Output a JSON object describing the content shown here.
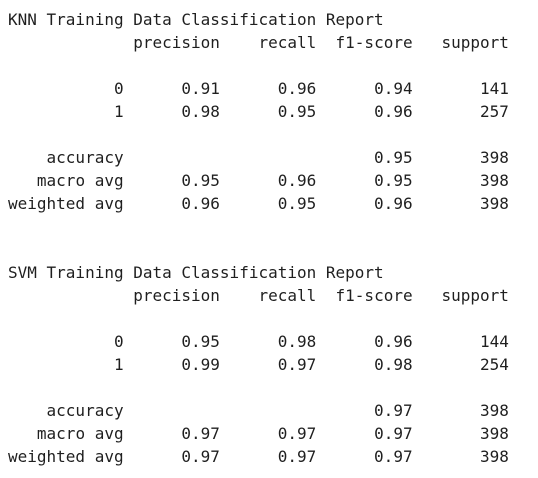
{
  "reports": [
    {
      "title": "KNN Training Data Classification Report",
      "headers": [
        "precision",
        "recall",
        "f1-score",
        "support"
      ],
      "class_rows": [
        {
          "label": "0",
          "precision": "0.91",
          "recall": "0.96",
          "f1": "0.94",
          "support": "141"
        },
        {
          "label": "1",
          "precision": "0.98",
          "recall": "0.95",
          "f1": "0.96",
          "support": "257"
        }
      ],
      "accuracy": {
        "label": "accuracy",
        "f1": "0.95",
        "support": "398"
      },
      "avg_rows": [
        {
          "label": "macro avg",
          "precision": "0.95",
          "recall": "0.96",
          "f1": "0.95",
          "support": "398"
        },
        {
          "label": "weighted avg",
          "precision": "0.96",
          "recall": "0.95",
          "f1": "0.96",
          "support": "398"
        }
      ]
    },
    {
      "title": "SVM Training Data Classification Report",
      "headers": [
        "precision",
        "recall",
        "f1-score",
        "support"
      ],
      "class_rows": [
        {
          "label": "0",
          "precision": "0.95",
          "recall": "0.98",
          "f1": "0.96",
          "support": "144"
        },
        {
          "label": "1",
          "precision": "0.99",
          "recall": "0.97",
          "f1": "0.98",
          "support": "254"
        }
      ],
      "accuracy": {
        "label": "accuracy",
        "f1": "0.97",
        "support": "398"
      },
      "avg_rows": [
        {
          "label": "macro avg",
          "precision": "0.97",
          "recall": "0.97",
          "f1": "0.97",
          "support": "398"
        },
        {
          "label": "weighted avg",
          "precision": "0.97",
          "recall": "0.97",
          "f1": "0.97",
          "support": "398"
        }
      ]
    }
  ]
}
